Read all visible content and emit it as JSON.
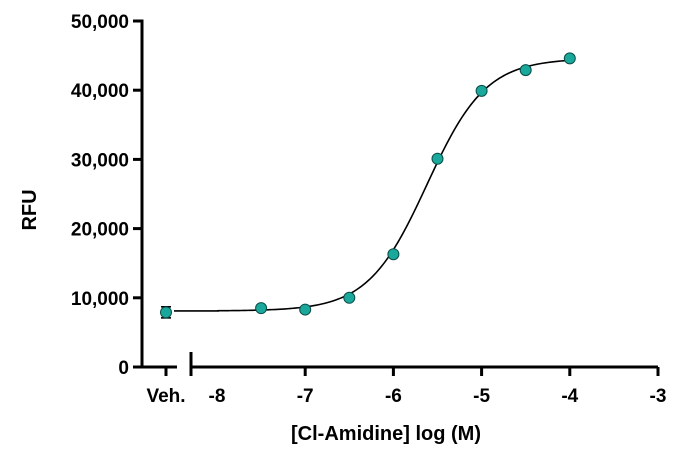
{
  "chart_data": {
    "type": "scatter",
    "title": "",
    "xlabel": "[Cl-Amidine] log (M)",
    "ylabel": "RFU",
    "ylim": [
      0,
      50000
    ],
    "xlim": [
      -8,
      -3
    ],
    "y_ticks": [
      "0",
      "10,000",
      "20,000",
      "30,000",
      "40,000",
      "50,000"
    ],
    "x_ticks": [
      "-8",
      "-7",
      "-6",
      "-5",
      "-4",
      "-3"
    ],
    "vehicle": {
      "label": "Veh.",
      "y": 7900,
      "error": 800
    },
    "points": [
      {
        "x": -7.5,
        "y": 8500
      },
      {
        "x": -7.0,
        "y": 8300
      },
      {
        "x": -6.5,
        "y": 10000
      },
      {
        "x": -6.0,
        "y": 16300
      },
      {
        "x": -5.5,
        "y": 30100
      },
      {
        "x": -5.0,
        "y": 39900
      },
      {
        "x": -4.5,
        "y": 42900
      },
      {
        "x": -4.0,
        "y": 44600
      }
    ],
    "fit": {
      "bottom": 8100,
      "top": 44600,
      "log_ec50": -5.62,
      "hill": 1.3
    },
    "colors": {
      "point": "#1aa89c",
      "line": "#000000"
    },
    "grid": false,
    "legend": "none"
  }
}
